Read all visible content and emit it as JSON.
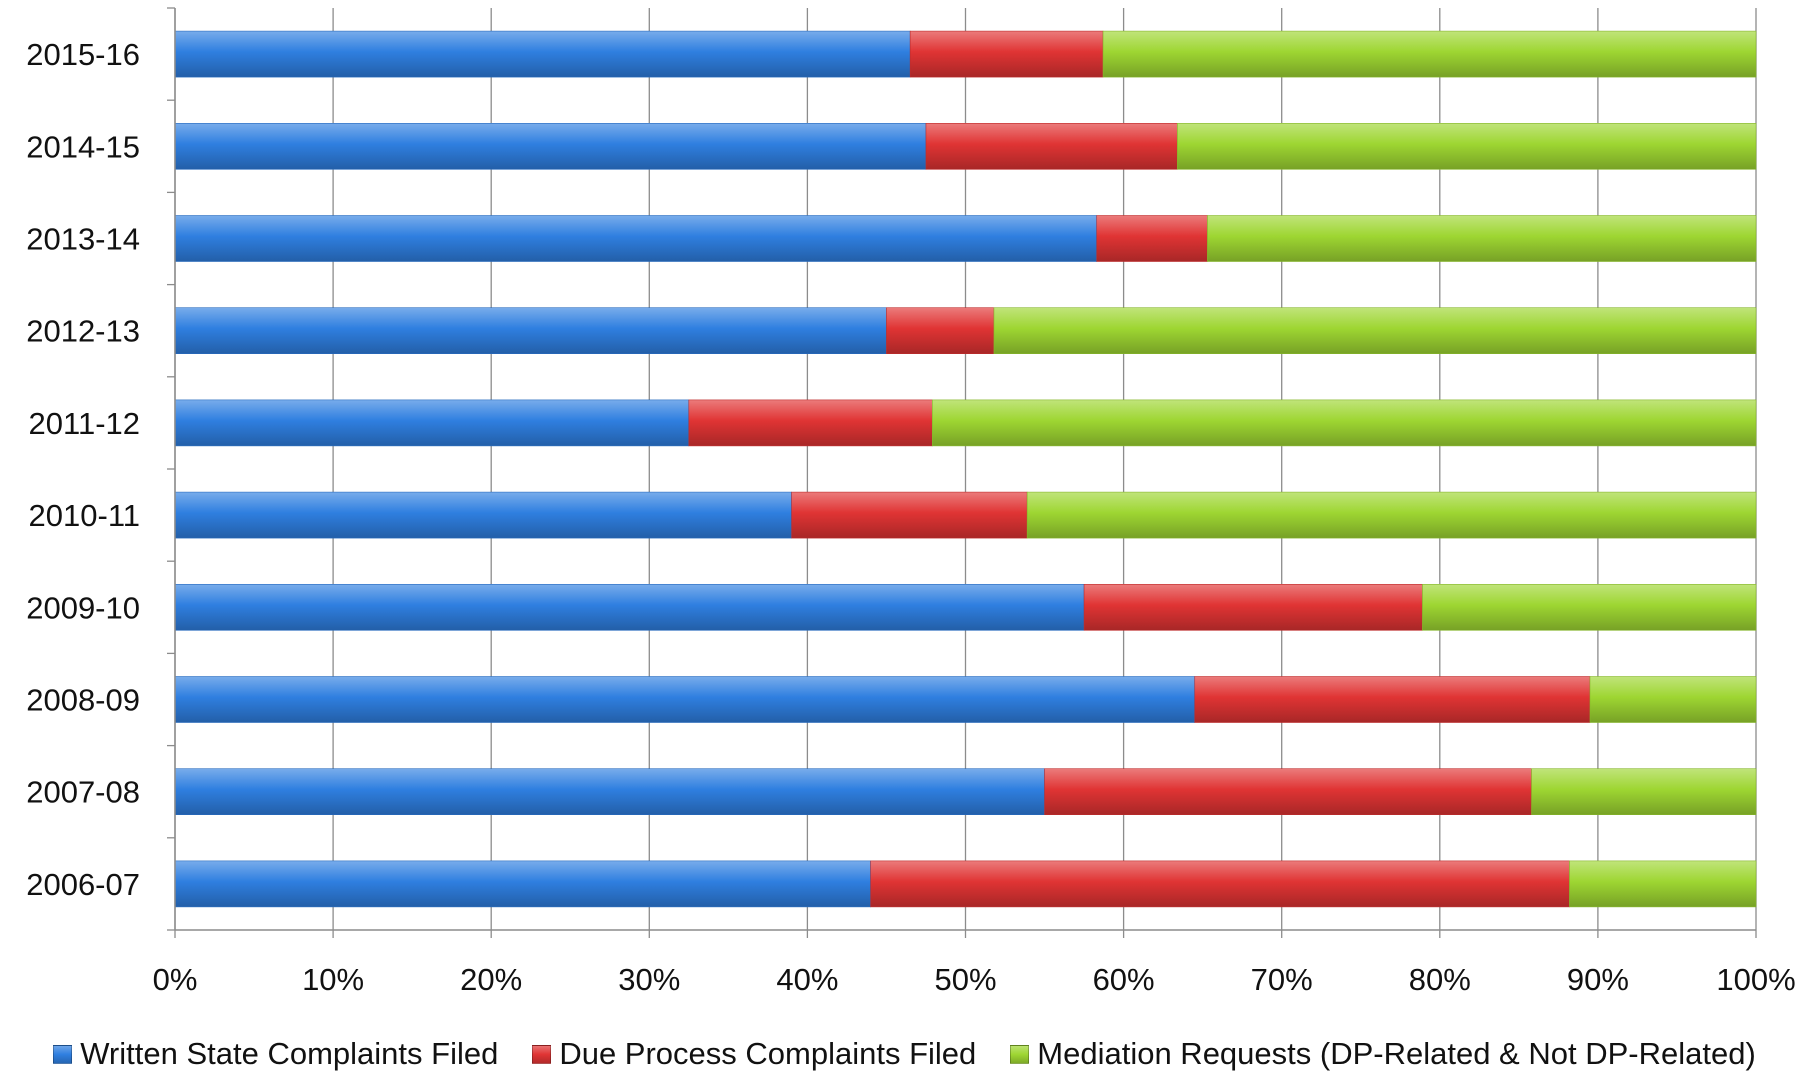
{
  "chart_data": {
    "type": "bar",
    "orientation": "horizontal",
    "stacked": "percent",
    "categories": [
      "2015-16",
      "2014-15",
      "2013-14",
      "2012-13",
      "2011-12",
      "2010-11",
      "2009-10",
      "2008-09",
      "2007-08",
      "2006-07"
    ],
    "series": [
      {
        "name": "Written State Complaints Filed",
        "color": "#2f7fe0",
        "values": [
          46.5,
          47.5,
          58.3,
          45.0,
          32.5,
          39.0,
          57.5,
          64.5,
          55.0,
          44.0
        ]
      },
      {
        "name": "Due Process Complaints Filed",
        "color": "#e03434",
        "values": [
          12.2,
          15.9,
          7.0,
          6.8,
          15.4,
          14.9,
          21.4,
          25.0,
          30.8,
          44.2
        ]
      },
      {
        "name": "Mediation Requests (DP-Related & Not DP-Related)",
        "color": "#9ed632",
        "values": [
          41.3,
          36.6,
          34.7,
          48.2,
          52.1,
          46.1,
          21.1,
          10.5,
          14.2,
          11.8
        ]
      }
    ],
    "xlim": [
      0,
      100
    ],
    "x_ticks": [
      "0%",
      "10%",
      "20%",
      "30%",
      "40%",
      "50%",
      "60%",
      "70%",
      "80%",
      "90%",
      "100%"
    ],
    "grid": "vertical",
    "legend_position": "bottom",
    "title": "",
    "xlabel": "",
    "ylabel": ""
  }
}
